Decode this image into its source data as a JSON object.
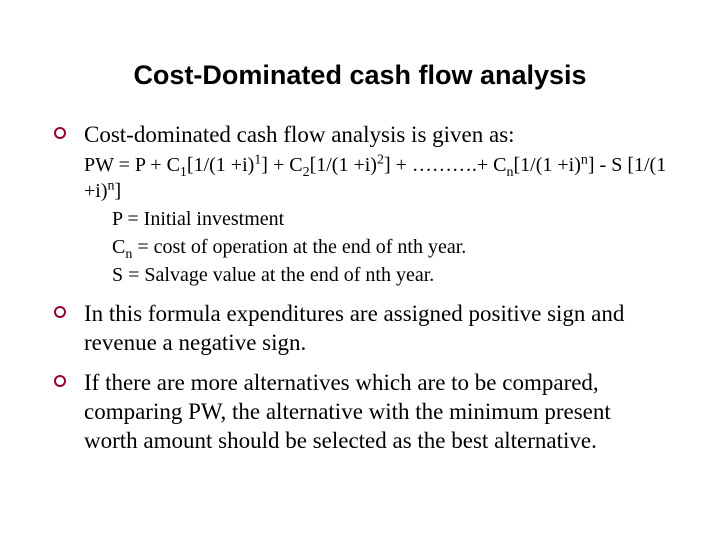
{
  "slide": {
    "title": "Cost-Dominated cash flow analysis",
    "title_color": "#000000",
    "title_fontsize": 27,
    "bullet_color": "#990033",
    "body_color": "#000000",
    "points": [
      {
        "lead": "Cost-dominated cash flow analysis is given as:",
        "formula_html": "PW = P + C<sub>1</sub>[1/(1 +i)<sup>1</sup>] + C<sub>2</sub>[1/(1 +i)<sup>2</sup>] + ……….+ C<sub>n</sub>[1/(1 +i)<sup>n</sup>] - S [1/(1 +i)<sup>n</sup>]",
        "defs": [
          "P = Initial investment",
          "C<sub>n</sub> = cost of operation at the end of nth year.",
          "S = Salvage value at the end of nth year."
        ]
      },
      {
        "lead": "In this formula expenditures are assigned positive sign and revenue a negative sign."
      },
      {
        "lead": "If there are more alternatives which are to be compared, comparing PW, the alternative with the minimum present worth amount  should be selected as the best alternative."
      }
    ]
  }
}
